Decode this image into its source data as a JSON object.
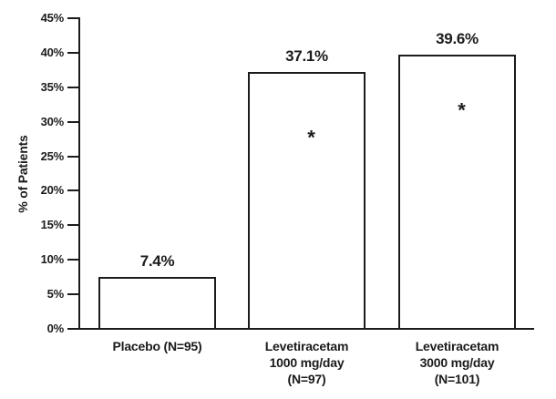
{
  "chart_data": {
    "type": "bar",
    "title": "",
    "xlabel": "",
    "ylabel": "% of Patients",
    "ylim": [
      0,
      45
    ],
    "ytick_step": 5,
    "ytick_labels": [
      "0%",
      "5%",
      "10%",
      "15%",
      "20%",
      "25%",
      "30%",
      "35%",
      "40%",
      "45%"
    ],
    "grid": false,
    "legend": "none",
    "categories": [
      "Placebo (N=95)",
      "Levetiracetam\n1000 mg/day\n(N=97)",
      "Levetiracetam\n3000 mg/day\n(N=101)"
    ],
    "values": [
      7.4,
      37.1,
      39.6
    ],
    "value_labels": [
      "7.4%",
      "37.1%",
      "39.6%"
    ],
    "significance_markers": [
      false,
      true,
      true
    ],
    "marker_glyph": "*",
    "marker_y_values": [
      null,
      28,
      32
    ],
    "bar_fill": "#ffffff",
    "bar_border": "#1b1b1b",
    "axis_color": "#1b1b1b",
    "text_color": "#1b1b1b"
  }
}
